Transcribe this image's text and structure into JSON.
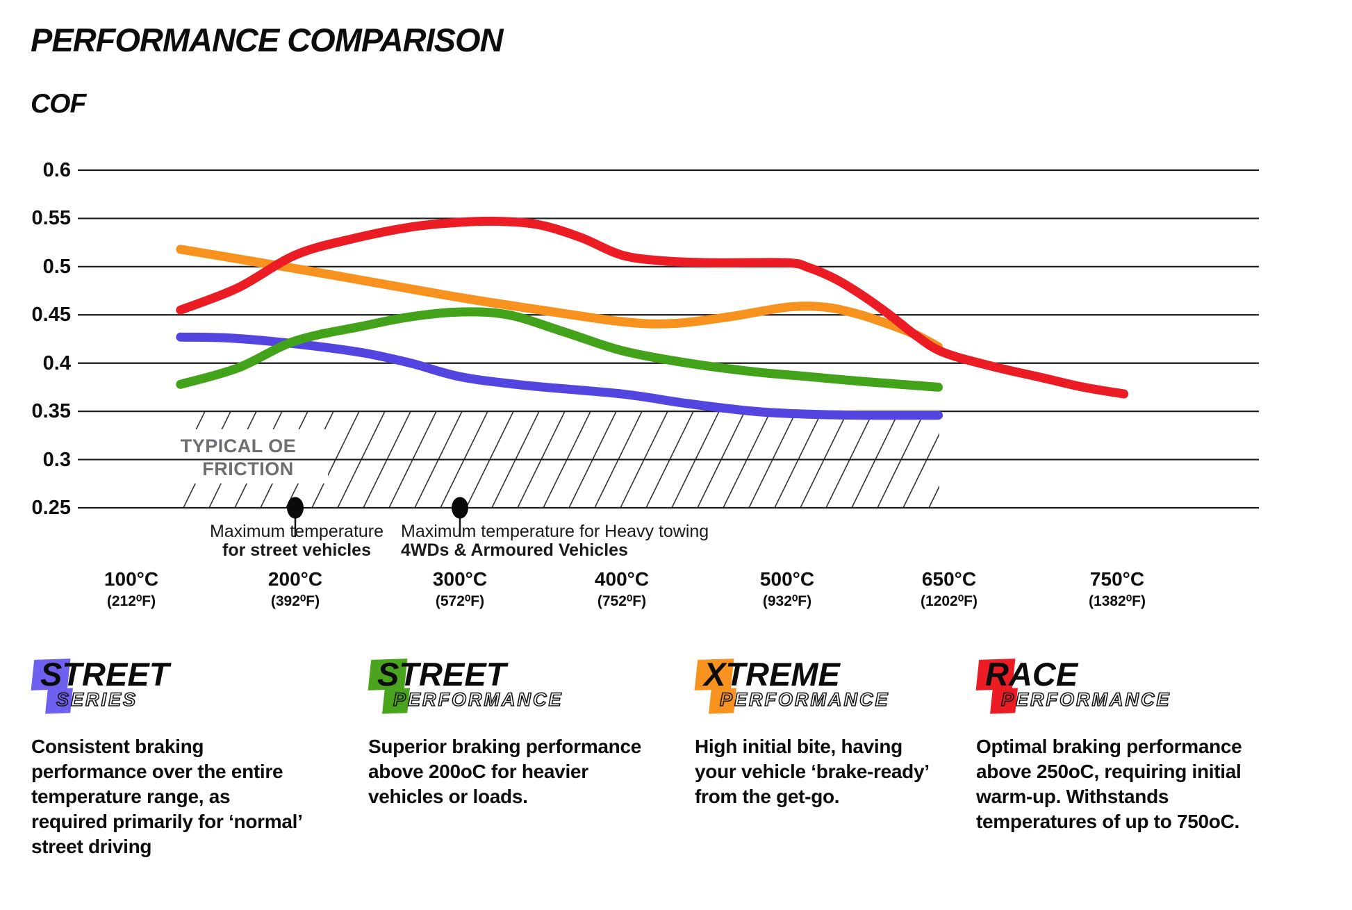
{
  "title": "PERFORMANCE COMPARISON",
  "subtitle": "COF",
  "chart_data": {
    "type": "line",
    "ylabel": "COF",
    "grid": true,
    "legend_position": "bottom",
    "ylim": [
      0.25,
      0.6
    ],
    "y_ticks": [
      0.6,
      0.55,
      0.5,
      0.45,
      0.4,
      0.35,
      0.3,
      0.25
    ],
    "y_tick_labels": [
      "0.6",
      "0.55",
      "0.5",
      "0.45",
      "0.4",
      "0.35",
      "0.3",
      "0.25"
    ],
    "x_ticks": [
      {
        "c": "100°C",
        "f": "(212⁰F)"
      },
      {
        "c": "200°C",
        "f": "(392⁰F)"
      },
      {
        "c": "300°C",
        "f": "(572⁰F)"
      },
      {
        "c": "400°C",
        "f": "(752⁰F)"
      },
      {
        "c": "500°C",
        "f": "(932⁰F)"
      },
      {
        "c": "650°C",
        "f": "(1202⁰F)"
      },
      {
        "c": "750°C",
        "f": "(1382⁰F)"
      }
    ],
    "band": {
      "from": 0.25,
      "to": 0.35,
      "label_line1": "TYPICAL OE",
      "label_line2": "FRICTION"
    },
    "annotations": [
      {
        "t": 200,
        "cof": 0.25,
        "line1": "Maximum temperature",
        "line2": "for street vehicles"
      },
      {
        "t": 300,
        "cof": 0.25,
        "line1": "Maximum temperature for Heavy towing",
        "line2": "4WDs & Armoured Vehicles"
      }
    ],
    "series": [
      {
        "name": "Street Series",
        "color": "#5445e0",
        "points": [
          [
            130,
            0.427
          ],
          [
            160,
            0.426
          ],
          [
            200,
            0.42
          ],
          [
            240,
            0.411
          ],
          [
            270,
            0.4
          ],
          [
            300,
            0.386
          ],
          [
            340,
            0.377
          ],
          [
            400,
            0.368
          ],
          [
            440,
            0.358
          ],
          [
            480,
            0.35
          ],
          [
            520,
            0.347
          ],
          [
            570,
            0.346
          ],
          [
            640,
            0.346
          ]
        ]
      },
      {
        "name": "Street Performance",
        "color": "#42a31a",
        "points": [
          [
            130,
            0.378
          ],
          [
            165,
            0.395
          ],
          [
            200,
            0.423
          ],
          [
            240,
            0.438
          ],
          [
            270,
            0.448
          ],
          [
            300,
            0.453
          ],
          [
            330,
            0.45
          ],
          [
            365,
            0.432
          ],
          [
            400,
            0.413
          ],
          [
            440,
            0.4
          ],
          [
            480,
            0.391
          ],
          [
            520,
            0.386
          ],
          [
            570,
            0.381
          ],
          [
            640,
            0.375
          ]
        ]
      },
      {
        "name": "Xtreme Performance",
        "color": "#f7921e",
        "points": [
          [
            130,
            0.518
          ],
          [
            200,
            0.498
          ],
          [
            250,
            0.483
          ],
          [
            300,
            0.468
          ],
          [
            350,
            0.455
          ],
          [
            400,
            0.443
          ],
          [
            430,
            0.441
          ],
          [
            465,
            0.448
          ],
          [
            500,
            0.458
          ],
          [
            535,
            0.458
          ],
          [
            565,
            0.451
          ],
          [
            595,
            0.44
          ],
          [
            620,
            0.429
          ],
          [
            640,
            0.417
          ]
        ]
      },
      {
        "name": "Race Performance",
        "color": "#ec1c24",
        "points": [
          [
            130,
            0.455
          ],
          [
            165,
            0.478
          ],
          [
            200,
            0.512
          ],
          [
            235,
            0.529
          ],
          [
            270,
            0.541
          ],
          [
            300,
            0.546
          ],
          [
            325,
            0.547
          ],
          [
            350,
            0.543
          ],
          [
            375,
            0.53
          ],
          [
            400,
            0.512
          ],
          [
            425,
            0.506
          ],
          [
            455,
            0.504
          ],
          [
            500,
            0.504
          ],
          [
            520,
            0.499
          ],
          [
            545,
            0.487
          ],
          [
            570,
            0.47
          ],
          [
            595,
            0.45
          ],
          [
            620,
            0.428
          ],
          [
            645,
            0.411
          ],
          [
            675,
            0.397
          ],
          [
            705,
            0.385
          ],
          [
            730,
            0.375
          ],
          [
            754,
            0.368
          ]
        ]
      }
    ]
  },
  "legend": [
    {
      "word1": "STREET",
      "word2_first": "S",
      "word2_rest": "ERIES",
      "color": "#6f61ef",
      "description": "Consistent braking performance over the entire temperature range, as required primarily for ‘normal’ street driving"
    },
    {
      "word1": "STREET",
      "word2_first": "P",
      "word2_rest": "ERFORMANCE",
      "color": "#4aa41e",
      "description": "Superior braking performance above 200oC for heavier vehicles or loads."
    },
    {
      "word1": "XTREME",
      "word2_first": "P",
      "word2_rest": "ERFORMANCE",
      "color": "#f7931e",
      "description": "High initial bite, having your vehicle ‘brake-ready’ from the get-go."
    },
    {
      "word1": "RACE",
      "word2_first": "P",
      "word2_rest": "ERFORMANCE",
      "color": "#ec1c24",
      "description": "Optimal braking performance above 250oC, requiring initial warm-up. Withstands temperatures of up to 750oC."
    }
  ]
}
